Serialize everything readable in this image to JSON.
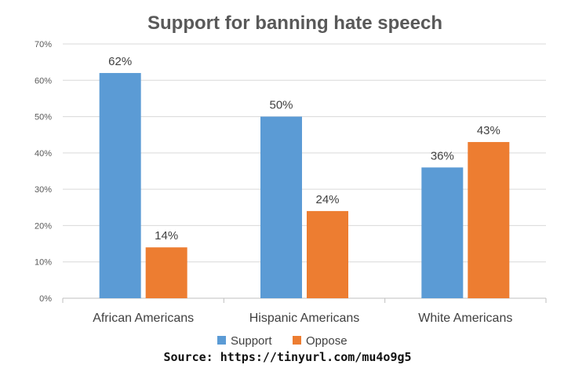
{
  "chart_data": {
    "type": "bar",
    "title": "Support for banning hate speech",
    "categories": [
      "African Americans",
      "Hispanic Americans",
      "White Americans"
    ],
    "series": [
      {
        "name": "Support",
        "values": [
          62,
          50,
          36
        ],
        "color": "#5b9bd5"
      },
      {
        "name": "Oppose",
        "values": [
          14,
          24,
          43
        ],
        "color": "#ed7d31"
      }
    ],
    "data_labels": [
      [
        "62%",
        "50%",
        "36%"
      ],
      [
        "14%",
        "24%",
        "43%"
      ]
    ],
    "yticks": [
      "0%",
      "10%",
      "20%",
      "30%",
      "40%",
      "50%",
      "60%",
      "70%"
    ],
    "ylim": [
      0,
      70
    ],
    "grid": true,
    "legend_position": "bottom"
  },
  "source_text": "Source: https://tinyurl.com/mu4o9g5"
}
